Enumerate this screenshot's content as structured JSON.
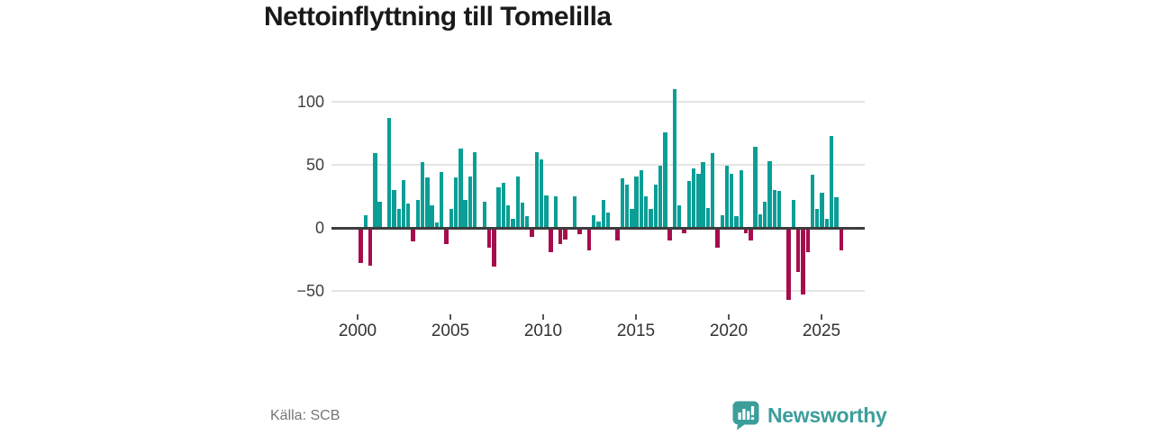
{
  "header": {
    "title": "Nettoinflyttning till Tomelilla"
  },
  "footer": {
    "source": "Källa: SCB",
    "brand": "Newsworthy"
  },
  "colors": {
    "positive_bar": "#0A9E96",
    "negative_bar": "#A60D4D",
    "gridline": "#E4E4E4",
    "zero_line": "#3D3D3D",
    "axis_text": "#404040",
    "title_text": "#1A1A1A",
    "source_text": "#757575",
    "brand_teal": "#3C9E9B"
  },
  "chart_data": {
    "type": "bar",
    "title": "Nettoinflyttning till Tomelilla",
    "frequency": "quarterly",
    "x_start": "2000-Q1",
    "x_end": "2025-Q2",
    "values": [
      -28,
      10,
      -30,
      59,
      21,
      0,
      87,
      30,
      15,
      38,
      19,
      -11,
      22,
      52,
      40,
      18,
      4,
      44,
      -13,
      15,
      40,
      63,
      22,
      41,
      60,
      0,
      21,
      -16,
      -31,
      32,
      36,
      18,
      7,
      41,
      20,
      9,
      -7,
      60,
      54,
      26,
      -19,
      25,
      -13,
      -9,
      0,
      25,
      -5,
      0,
      -18,
      10,
      5,
      22,
      12,
      0,
      -10,
      39,
      34,
      15,
      41,
      46,
      25,
      15,
      34,
      49,
      76,
      -10,
      110,
      18,
      -4,
      37,
      47,
      43,
      52,
      16,
      59,
      -16,
      10,
      49,
      43,
      9,
      46,
      -4,
      -10,
      64,
      11,
      21,
      53,
      30,
      29,
      0,
      -57,
      22,
      -35,
      -53,
      -19,
      42,
      15,
      28,
      7,
      73,
      24,
      -18
    ],
    "yticks": [
      100,
      50,
      0,
      -50
    ],
    "ylim": [
      -62,
      115
    ],
    "xticks": [
      2000,
      2005,
      2010,
      2015,
      2020,
      2025
    ],
    "grid": "horizontal",
    "legend": "none",
    "positive_color": "#0A9E96",
    "negative_color": "#A60D4D",
    "ylabel": "",
    "xlabel": ""
  }
}
